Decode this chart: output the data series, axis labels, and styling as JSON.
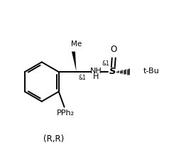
{
  "background_color": "#ffffff",
  "line_color": "#000000",
  "text_color": "#000000",
  "fig_width": 2.38,
  "fig_height": 2.25,
  "dpi": 100,
  "label_RR": "(R,R)",
  "label_Me": "Me",
  "label_PPh2": "PPh₂",
  "label_NH": "NH",
  "label_tBu": "t-Bu",
  "label_S": "S",
  "label_O": "O",
  "label_chiral1": "&1",
  "label_chiral2": "&1"
}
